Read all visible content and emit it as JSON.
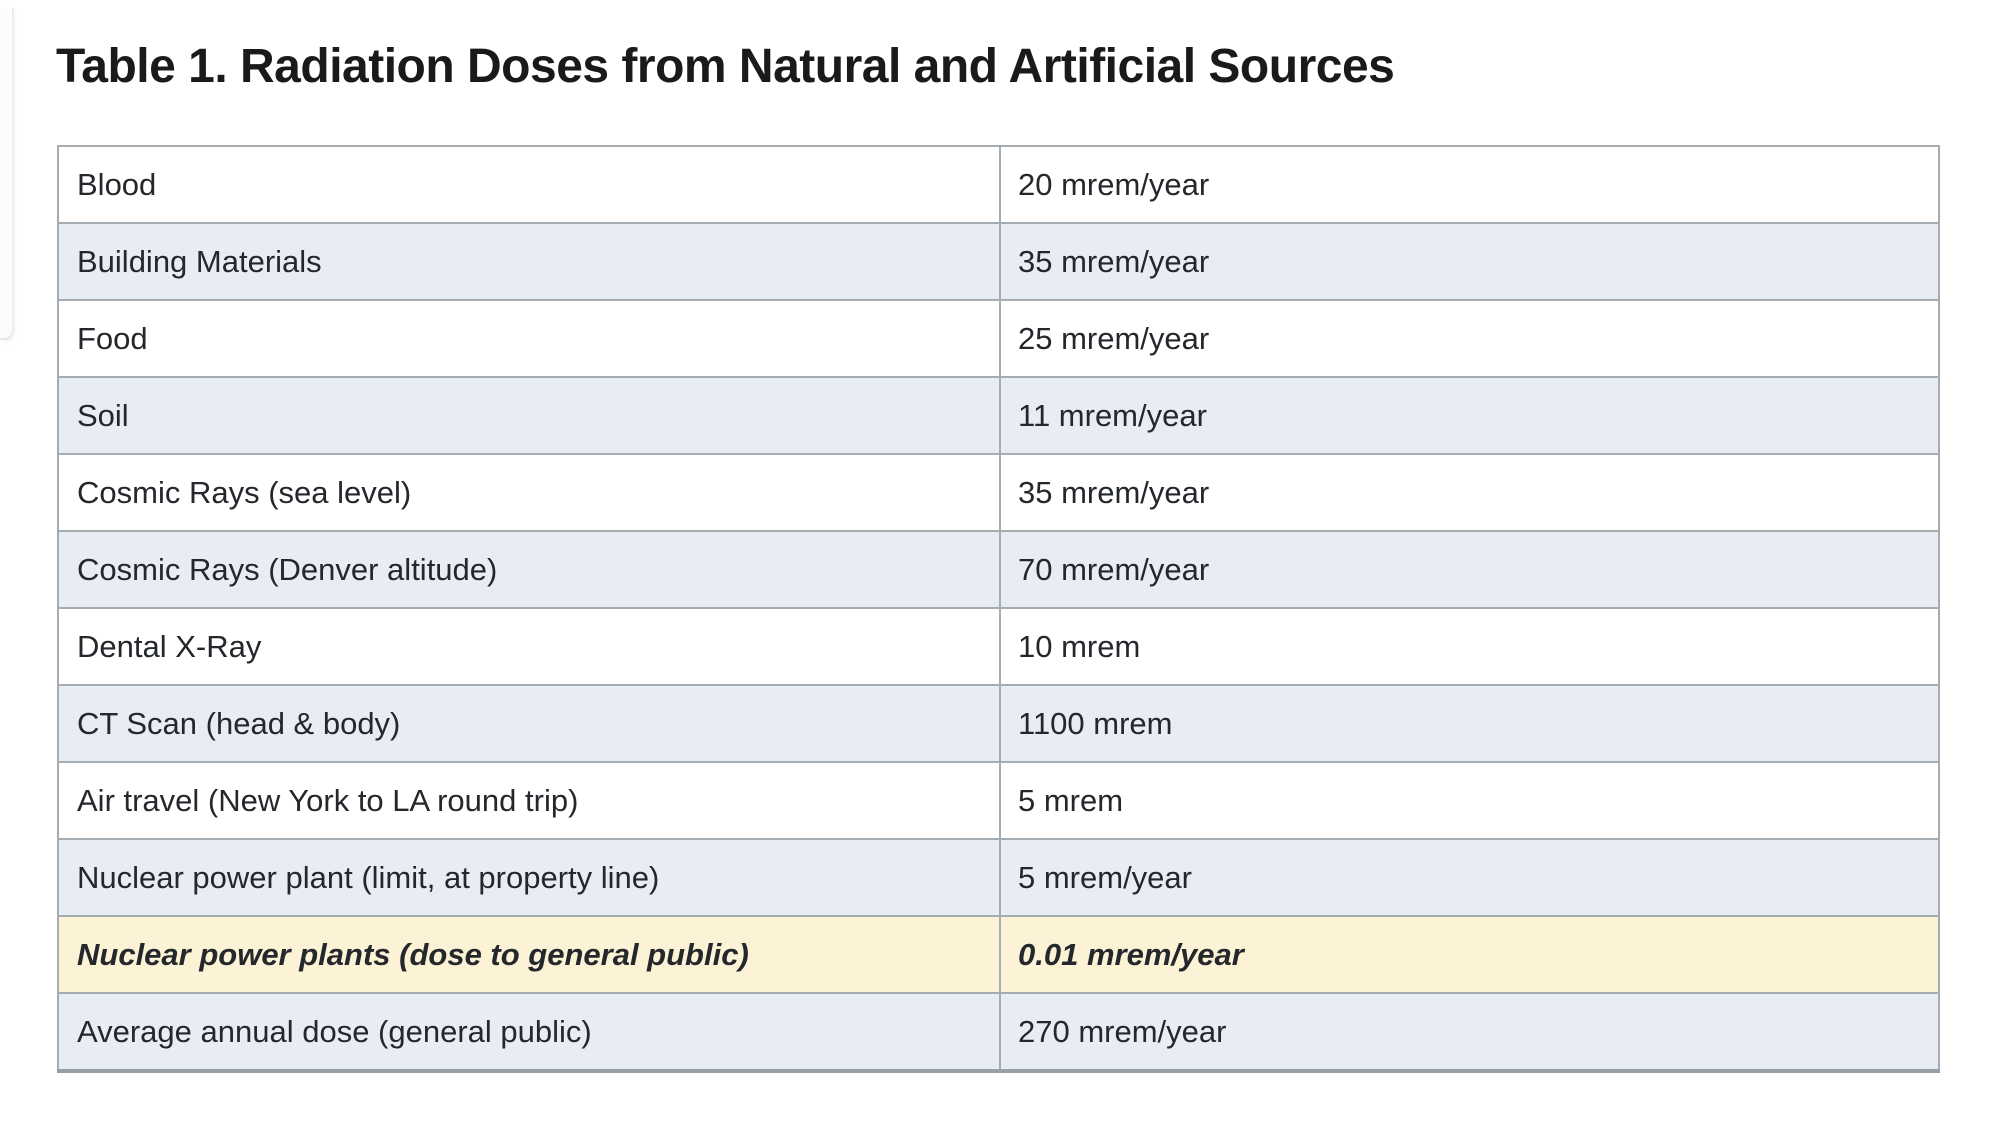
{
  "page": {
    "title": "Table 1. Radiation Doses from Natural and Artificial Sources"
  },
  "table": {
    "columns": [
      "source",
      "dose"
    ],
    "rows": [
      {
        "source": "Blood",
        "dose": "20 mrem/year",
        "variant": "white"
      },
      {
        "source": "Building Materials",
        "dose": "35 mrem/year",
        "variant": "stripe"
      },
      {
        "source": "Food",
        "dose": "25 mrem/year",
        "variant": "white"
      },
      {
        "source": "Soil",
        "dose": "11 mrem/year",
        "variant": "stripe"
      },
      {
        "source": "Cosmic Rays (sea level)",
        "dose": "35 mrem/year",
        "variant": "white"
      },
      {
        "source": "Cosmic Rays (Denver altitude)",
        "dose": "70 mrem/year",
        "variant": "stripe"
      },
      {
        "source": "Dental X-Ray",
        "dose": "10 mrem",
        "variant": "white"
      },
      {
        "source": "CT Scan (head & body)",
        "dose": "1100 mrem",
        "variant": "stripe"
      },
      {
        "source": "Air travel (New York to LA round trip)",
        "dose": "5 mrem",
        "variant": "white"
      },
      {
        "source": "Nuclear power plant (limit, at property line)",
        "dose": "5 mrem/year",
        "variant": "stripe"
      },
      {
        "source": "Nuclear power plants (dose to general public)",
        "dose": "0.01 mrem/year",
        "variant": "highlight"
      },
      {
        "source": "Average annual dose (general public)",
        "dose": "270 mrem/year",
        "variant": "stripe"
      }
    ],
    "colors": {
      "stripe_row": "#e7edf3",
      "highlight_row": "#fcf3d6",
      "grid_border": "#a5acb2",
      "bottom_border": "#98a0a7",
      "cell_text": "#24282c",
      "title_text": "#1a1a1a"
    }
  }
}
